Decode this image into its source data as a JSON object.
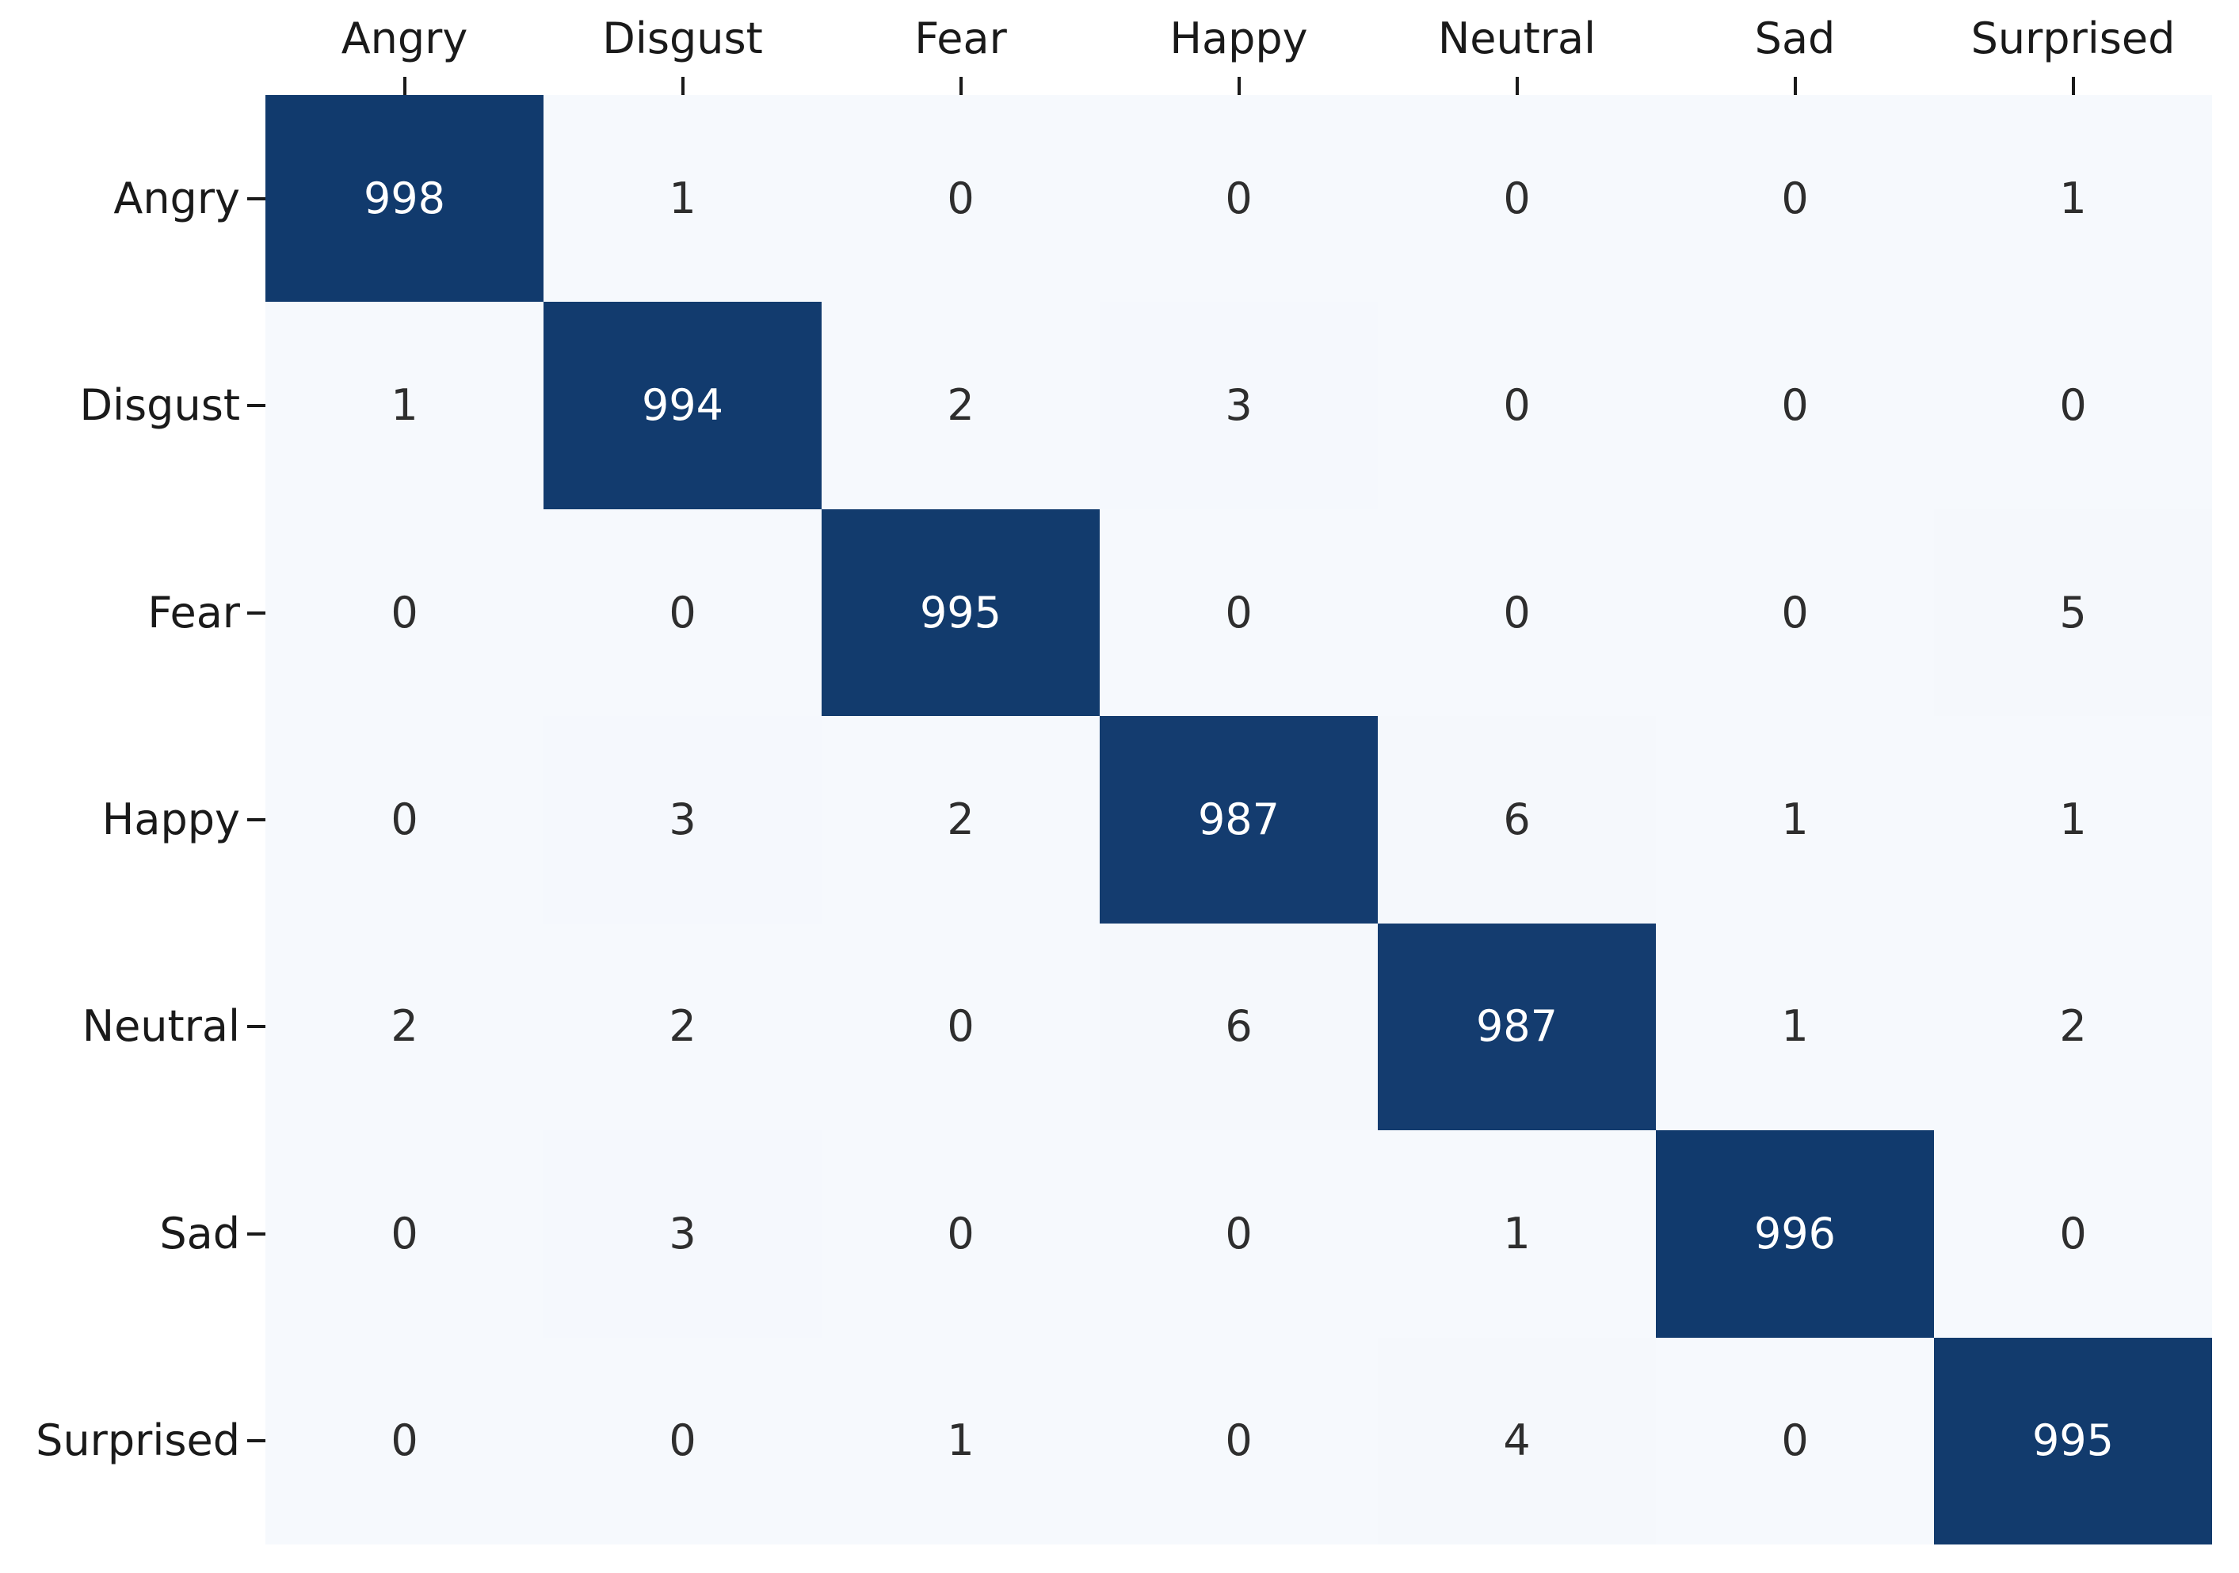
{
  "chart_data": {
    "type": "heatmap",
    "title": "",
    "x_categories": [
      "Angry",
      "Disgust",
      "Fear",
      "Happy",
      "Neutral",
      "Sad",
      "Surprised"
    ],
    "y_categories": [
      "Angry",
      "Disgust",
      "Fear",
      "Happy",
      "Neutral",
      "Sad",
      "Surprised"
    ],
    "matrix": [
      [
        998,
        1,
        0,
        0,
        0,
        0,
        1
      ],
      [
        1,
        994,
        2,
        3,
        0,
        0,
        0
      ],
      [
        0,
        0,
        995,
        0,
        0,
        0,
        5
      ],
      [
        0,
        3,
        2,
        987,
        6,
        1,
        1
      ],
      [
        2,
        2,
        0,
        6,
        987,
        1,
        2
      ],
      [
        0,
        3,
        0,
        0,
        1,
        996,
        0
      ],
      [
        0,
        0,
        1,
        0,
        4,
        0,
        995
      ]
    ],
    "vmin": 0,
    "vmax": 998,
    "colormap": {
      "low": "#f6f9fd",
      "high": "#113a6d"
    },
    "annotation_color_on_dark": "#ffffff",
    "annotation_color_on_light": "#2e2e2e",
    "axis_label_color": "#1a1a1a",
    "legend": "none",
    "grid": false
  }
}
